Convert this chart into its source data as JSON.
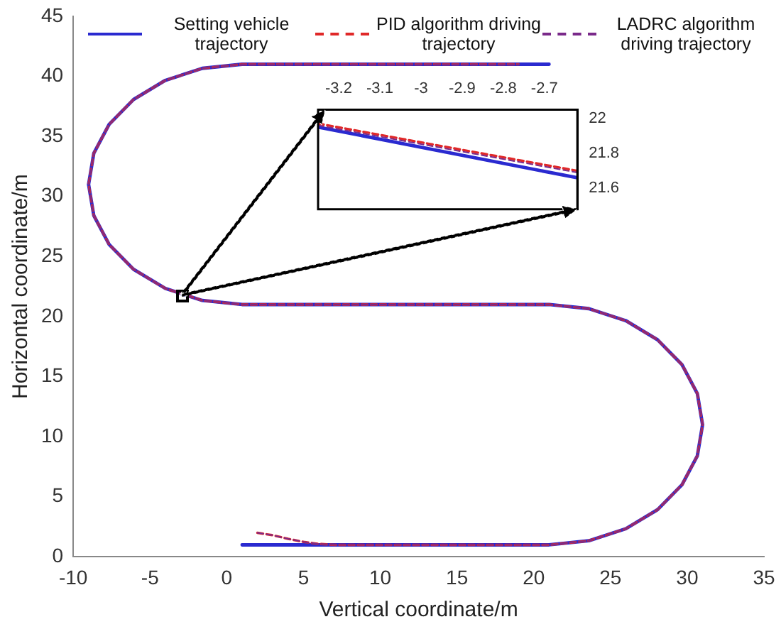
{
  "chart_data": [
    {
      "type": "line",
      "xlabel": "Vertical coordinate/m",
      "ylabel": "Horizontal coordinate/m",
      "xlim": [
        -10,
        35
      ],
      "ylim": [
        0,
        45
      ],
      "xticks": [
        -10,
        -5,
        0,
        5,
        10,
        15,
        20,
        25,
        30,
        35
      ],
      "yticks": [
        0,
        5,
        10,
        15,
        20,
        25,
        30,
        35,
        40,
        45
      ],
      "grid": false,
      "legend": "top",
      "series": [
        {
          "name": "Setting vehicle trajectory",
          "color": "#2a2ad0",
          "line_style": "solid",
          "x": [
            1,
            21,
            23.59,
            26,
            28.07,
            29.66,
            30.66,
            31,
            30.66,
            29.66,
            28.07,
            26,
            23.59,
            21,
            1,
            -1.59,
            -4,
            -6.07,
            -7.66,
            -8.66,
            -9,
            -8.66,
            -7.66,
            -6.07,
            -4,
            -1.59,
            1,
            21
          ],
          "values": [
            1,
            1,
            1.34,
            2.34,
            3.93,
            6,
            8.41,
            11,
            13.59,
            16,
            18.07,
            19.66,
            20.66,
            21,
            21,
            21.34,
            22.34,
            23.93,
            26,
            28.41,
            31,
            33.59,
            36,
            38.07,
            39.66,
            40.66,
            41,
            41
          ]
        },
        {
          "name": "PID algorithm driving trajectory",
          "color": "#e02828",
          "line_style": "dashed",
          "x": [
            2,
            3,
            4,
            5,
            6,
            7,
            21,
            23.59,
            26,
            28.07,
            29.66,
            30.66,
            31,
            30.66,
            29.66,
            28.07,
            26,
            23.59,
            21,
            1,
            -1.59,
            -4,
            -6.07,
            -7.66,
            -8.66,
            -9,
            -8.66,
            -7.66,
            -6.07,
            -4,
            -1.59,
            1,
            19
          ],
          "values": [
            2,
            1.8,
            1.5,
            1.25,
            1.08,
            1,
            1,
            1.34,
            2.34,
            3.93,
            6,
            8.41,
            11,
            13.59,
            16,
            18.07,
            19.66,
            20.66,
            21,
            21,
            21.34,
            22.34,
            23.93,
            26,
            28.41,
            31,
            33.59,
            36,
            38.07,
            39.66,
            40.66,
            41,
            41
          ]
        },
        {
          "name": "LADRC algorithm driving trajectory",
          "color": "#7a2a8a",
          "line_style": "dashed",
          "x": [
            2,
            3,
            4,
            5,
            6,
            7,
            21,
            23.59,
            26,
            28.07,
            29.66,
            30.66,
            31,
            30.66,
            29.66,
            28.07,
            26,
            23.59,
            21,
            1,
            -1.59,
            -4,
            -6.07,
            -7.66,
            -8.66,
            -9,
            -8.66,
            -7.66,
            -6.07,
            -4,
            -1.59,
            1,
            19
          ],
          "values": [
            2,
            1.8,
            1.5,
            1.25,
            1.08,
            1,
            1,
            1.34,
            2.34,
            3.93,
            6,
            8.41,
            11,
            13.59,
            16,
            18.07,
            19.66,
            20.66,
            21,
            21,
            21.34,
            22.34,
            23.93,
            26,
            28.41,
            31,
            33.59,
            36,
            38.07,
            39.66,
            40.66,
            41,
            41
          ]
        }
      ]
    },
    {
      "type": "line",
      "xlim": [
        -3.25,
        -2.62
      ],
      "ylim": [
        21.48,
        22.05
      ],
      "xticks": [
        -3.2,
        -3.1,
        -3,
        -2.9,
        -2.8,
        -2.7
      ],
      "yticks": [
        21.6,
        21.8,
        22
      ],
      "grid": false,
      "series": [
        {
          "color": "#2a2ad0",
          "line_style": "solid",
          "x": [
            -3.25,
            -2.62
          ],
          "values": [
            21.95,
            21.66
          ]
        },
        {
          "color": "#e02828",
          "line_style": "dashed",
          "x": [
            -3.25,
            -2.62
          ],
          "values": [
            21.97,
            21.7
          ]
        },
        {
          "color": "#7a2a8a",
          "line_style": "dashed",
          "x": [
            -3.25,
            -2.62
          ],
          "values": [
            21.96,
            21.69
          ]
        }
      ]
    }
  ]
}
